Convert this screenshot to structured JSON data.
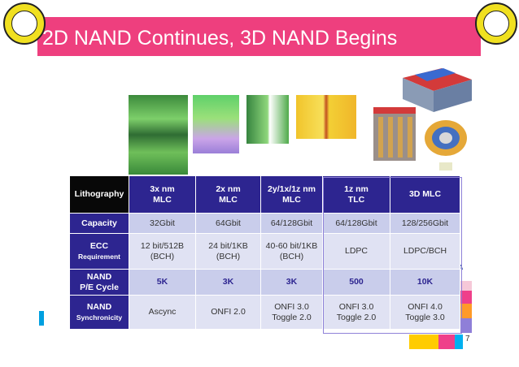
{
  "title": "2D NAND Continues, 3D NAND Begins",
  "page_number": "7",
  "corner_text": "ATA",
  "table": {
    "header": [
      "Lithography",
      "3x nm\nMLC",
      "2x nm\nMLC",
      "2y/1x/1z nm\nMLC",
      "1z nm\nTLC",
      "3D MLC"
    ],
    "rows": [
      {
        "label": "Capacity",
        "sublabel": "",
        "cells": [
          "32Gbit",
          "64Gbit",
          "64/128Gbit",
          "64/128Gbit",
          "128/256Gbit"
        ]
      },
      {
        "label": "ECC",
        "sublabel": "Requirement",
        "cells": [
          "12 bit/512B\n(BCH)",
          "24 bit/1KB\n(BCH)",
          "40-60 bit/1KB\n(BCH)",
          "LDPC",
          "LDPC/BCH"
        ]
      },
      {
        "label": "NAND\nP/E Cycle",
        "sublabel": "",
        "cells": [
          "5K",
          "3K",
          "3K",
          "500",
          "10K"
        ]
      },
      {
        "label": "NAND",
        "sublabel": "Synchronicity",
        "cells": [
          "Ascync",
          "ONFI 2.0",
          "ONFI 3.0\nToggle 2.0",
          "ONFI 3.0\nToggle 2.0",
          "ONFI 4.0\nToggle 3.0"
        ]
      }
    ]
  },
  "colors": {
    "title_bar": "#ee3f7e",
    "header_bg": "#2d2590",
    "cell_light": "#e0e2f3",
    "cell_dark": "#c9cdeb"
  }
}
